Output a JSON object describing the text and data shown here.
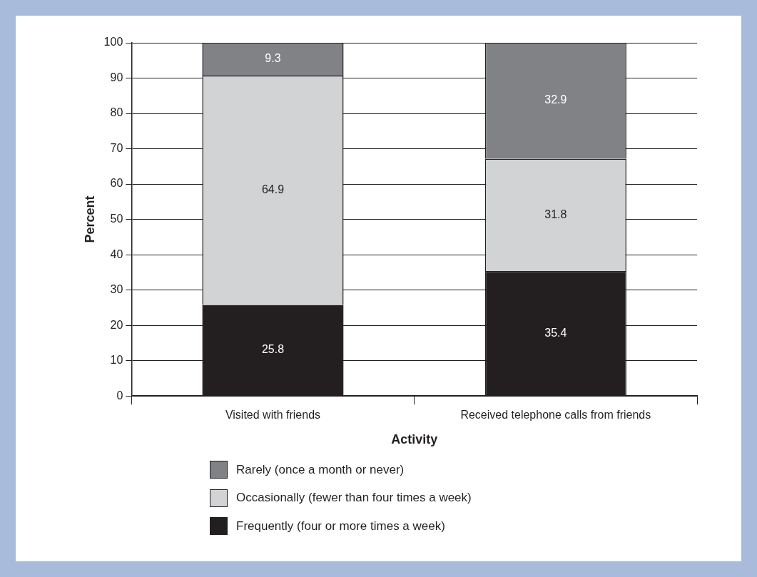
{
  "chart_data": {
    "type": "bar",
    "stacked": true,
    "xlabel": "Activity",
    "ylabel": "Percent",
    "categories": [
      "Visited with friends",
      "Received telephone calls from friends"
    ],
    "series": [
      {
        "name": "Frequently (four or more times a week)",
        "color": "#231f20",
        "values": [
          25.8,
          35.4
        ]
      },
      {
        "name": "Occasionally (fewer than four times a week)",
        "color": "#d1d3d4",
        "values": [
          64.9,
          31.8
        ]
      },
      {
        "name": "Rarely (once a month or never)",
        "color": "#808285",
        "values": [
          9.3,
          32.9
        ]
      }
    ],
    "ylim": [
      0,
      100
    ],
    "yticks": [
      0,
      10,
      20,
      30,
      40,
      50,
      60,
      70,
      80,
      90,
      100
    ],
    "grid": "y",
    "legend": "bottom",
    "data_labels": true
  }
}
